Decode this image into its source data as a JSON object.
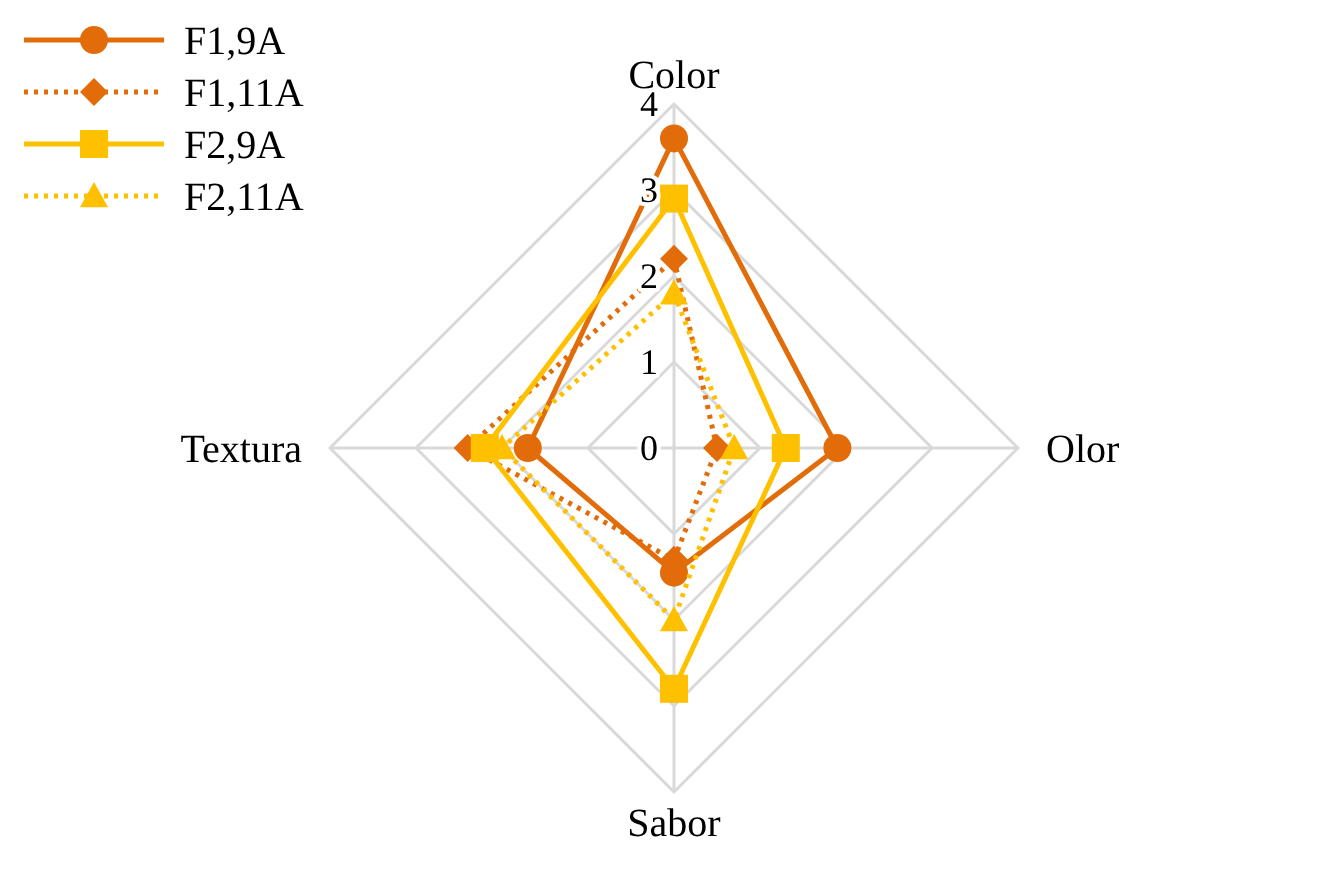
{
  "chart_data": {
    "type": "radar",
    "categories": [
      "Color",
      "Olor",
      "Sabor",
      "Textura"
    ],
    "ylim": [
      0,
      4
    ],
    "yticks": [
      0,
      1,
      2,
      3,
      4
    ],
    "grid": true,
    "legend": "top left",
    "series": [
      {
        "name": "F1,9A",
        "color": "#e36c0a",
        "values": [
          3.6,
          1.9,
          1.45,
          1.7
        ],
        "marker": "circle",
        "line_style": "solid"
      },
      {
        "name": "F1,11A",
        "color": "#e36c0a",
        "values": [
          2.2,
          0.5,
          1.3,
          2.4
        ],
        "marker": "diamond",
        "line_style": "dotted"
      },
      {
        "name": "F2,9A",
        "color": "#ffc000",
        "values": [
          2.9,
          1.3,
          2.8,
          2.2
        ],
        "marker": "square",
        "line_style": "solid"
      },
      {
        "name": "F2,11A",
        "color": "#ffc000",
        "values": [
          1.8,
          0.7,
          2.0,
          2.0
        ],
        "marker": "triangle",
        "line_style": "dotted"
      }
    ]
  }
}
